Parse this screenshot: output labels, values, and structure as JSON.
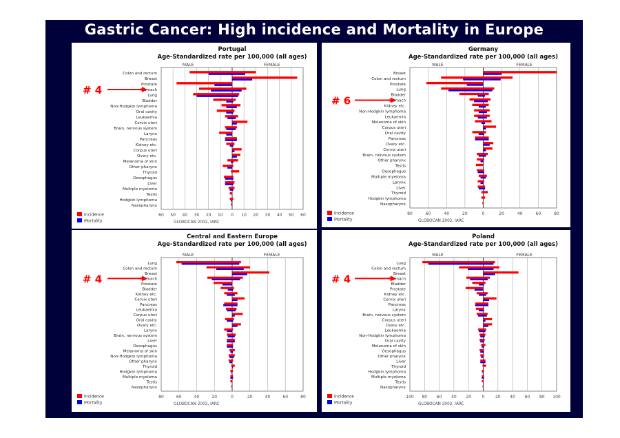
{
  "slide": {
    "title": "Gastric Cancer: High incidence and Mortality in Europe"
  },
  "common": {
    "male_label": "MALE",
    "female_label": "FEMALE",
    "legend": [
      {
        "label": "Incidence",
        "color": "#ff0000"
      },
      {
        "label": "Mortality",
        "color": "#0000ff"
      }
    ],
    "source": "GLOBOCAN 2002, IARC",
    "arrow_color": "#ff0000"
  },
  "chart_data": [
    {
      "type": "bar",
      "title": "Portugal",
      "subtitle": "Age-Standardized rate per 100,000 (all ages)",
      "rank_label": "# 4",
      "highlight": "Stomach",
      "axis_max": 60,
      "ticks": [
        "60",
        "50",
        "40",
        "30",
        "20",
        "10",
        "0",
        "10",
        "20",
        "30",
        "40",
        "50",
        "60"
      ],
      "categories": [
        "Colon and rectum",
        "Breast",
        "Prostate",
        "Stomach",
        "Lung",
        "Bladder",
        "Non-Hodgkin lymphoma",
        "Oral cavity",
        "Leukaemia",
        "Cervix uteri",
        "Brain, nervous system",
        "Larynx",
        "Pancreas",
        "Kidney etc.",
        "Corpus uteri",
        "Ovary etc.",
        "Melanoma of skin",
        "Other pharynx",
        "Thyroid",
        "Oesophagus",
        "Liver",
        "Multiple myeloma",
        "Testis",
        "Hodgkin lymphoma",
        "Nasopharynx"
      ],
      "series": [
        {
          "name": "Male incidence",
          "values": [
            36,
            0,
            47,
            28,
            33,
            16,
            9,
            13,
            6,
            0,
            6,
            11,
            6,
            5,
            0,
            0,
            4,
            8,
            1,
            7,
            6,
            3,
            2,
            2,
            1
          ]
        },
        {
          "name": "Male mortality",
          "values": [
            20,
            0,
            15,
            18,
            30,
            5,
            5,
            5,
            4,
            0,
            5,
            5,
            6,
            2,
            0,
            0,
            1,
            4,
            0,
            6,
            6,
            2,
            0,
            1,
            0
          ]
        },
        {
          "name": "Female incidence",
          "values": [
            20,
            55,
            0,
            12,
            6,
            3,
            7,
            2,
            5,
            13,
            4,
            0,
            4,
            2,
            8,
            7,
            5,
            1,
            6,
            1,
            2,
            2,
            0,
            1,
            0
          ]
        },
        {
          "name": "Female mortality",
          "values": [
            11,
            17,
            0,
            8,
            5,
            1,
            4,
            1,
            3,
            4,
            3,
            0,
            4,
            1,
            2,
            4,
            1,
            0,
            0,
            1,
            1,
            1,
            0,
            0,
            0
          ]
        }
      ]
    },
    {
      "type": "bar",
      "title": "Germany",
      "subtitle": "Age-Standardized rate per 100,000 (all ages)",
      "rank_label": "# 6",
      "highlight": "Stomach",
      "axis_max": 80,
      "ticks": [
        "80",
        "60",
        "40",
        "20",
        "0",
        "20",
        "40",
        "60",
        "80"
      ],
      "categories": [
        "Breast",
        "Colon and rectum",
        "Prostate",
        "Lung",
        "Bladder",
        "Stomach",
        "Kidney etc.",
        "Non-Hodgkin lymphoma",
        "Leukaemia",
        "Melanoma of skin",
        "Corpus uteri",
        "Oral cavity",
        "Pancreas",
        "Ovary etc.",
        "Cervix uteri",
        "Brain, nervous system",
        "Other pharynx",
        "Testis",
        "Oesophagus",
        "Multiple myeloma",
        "Larynx",
        "Liver",
        "Thyroid",
        "Hodgkin lymphoma",
        "Nasopharynx"
      ],
      "series": [
        {
          "name": "Male incidence",
          "values": [
            0,
            46,
            62,
            46,
            26,
            15,
            12,
            10,
            10,
            9,
            0,
            12,
            9,
            0,
            0,
            7,
            7,
            8,
            7,
            5,
            6,
            6,
            2,
            2,
            1
          ]
        },
        {
          "name": "Male mortality",
          "values": [
            0,
            22,
            18,
            38,
            6,
            10,
            5,
            5,
            6,
            2,
            0,
            5,
            9,
            0,
            0,
            5,
            3,
            0,
            6,
            3,
            3,
            5,
            0,
            0,
            0
          ]
        },
        {
          "name": "Female incidence",
          "values": [
            80,
            32,
            0,
            12,
            6,
            8,
            6,
            7,
            7,
            9,
            14,
            3,
            6,
            11,
            10,
            5,
            1,
            0,
            1,
            4,
            1,
            2,
            5,
            2,
            0
          ]
        },
        {
          "name": "Female mortality",
          "values": [
            20,
            19,
            0,
            10,
            2,
            5,
            3,
            4,
            4,
            2,
            3,
            1,
            6,
            7,
            3,
            3,
            0,
            0,
            1,
            3,
            0,
            2,
            0,
            0,
            0
          ]
        }
      ]
    },
    {
      "type": "bar",
      "title": "Central and Eastern Europe",
      "subtitle": "Age-Standardized rate per 100,000 (all ages)",
      "rank_label": "# 4",
      "highlight": "Stomach",
      "axis_max": 80,
      "ticks": [
        "80",
        "60",
        "40",
        "20",
        "0",
        "20",
        "40",
        "60",
        "80"
      ],
      "categories": [
        "Lung",
        "Colon and rectum",
        "Breast",
        "Stomach",
        "Prostate",
        "Bladder",
        "Kidney etc.",
        "Cervix uteri",
        "Pancreas",
        "Leukaemia",
        "Corpus uteri",
        "Oral cavity",
        "Ovary etc.",
        "Larynx",
        "Brain, nervous system",
        "Liver",
        "Oesophagus",
        "Melanoma of skin",
        "Non-Hodgkin lymphoma",
        "Other pharynx",
        "Thyroid",
        "Hodgkin lymphoma",
        "Multiple myeloma",
        "Testis",
        "Nasopharynx"
      ],
      "series": [
        {
          "name": "Male incidence",
          "values": [
            63,
            29,
            0,
            28,
            21,
            13,
            9,
            0,
            9,
            7,
            0,
            8,
            0,
            9,
            6,
            6,
            6,
            3,
            4,
            4,
            1,
            2,
            2,
            2,
            1
          ]
        },
        {
          "name": "Male mortality",
          "values": [
            57,
            18,
            0,
            23,
            11,
            5,
            6,
            0,
            10,
            6,
            0,
            6,
            0,
            6,
            5,
            6,
            6,
            2,
            3,
            3,
            0,
            1,
            2,
            0,
            0
          ]
        },
        {
          "name": "Female incidence",
          "values": [
            10,
            20,
            42,
            12,
            0,
            2,
            6,
            14,
            6,
            5,
            12,
            2,
            10,
            1,
            4,
            3,
            1,
            3,
            3,
            1,
            3,
            1,
            1,
            0,
            0
          ]
        },
        {
          "name": "Female mortality",
          "values": [
            8,
            13,
            17,
            9,
            0,
            1,
            3,
            6,
            6,
            4,
            3,
            1,
            6,
            0,
            3,
            3,
            1,
            1,
            2,
            0,
            1,
            0,
            1,
            0,
            0
          ]
        }
      ]
    },
    {
      "type": "bar",
      "title": "Poland",
      "subtitle": "Age-Standardized rate per 100,000 (all ages)",
      "rank_label": "# 4",
      "highlight": "Stomach",
      "axis_max": 100,
      "ticks": [
        "100",
        "80",
        "60",
        "40",
        "20",
        "0",
        "20",
        "40",
        "60",
        "80",
        "100"
      ],
      "categories": [
        "Lung",
        "Colon and rectum",
        "Breast",
        "Stomach",
        "Bladder",
        "Prostate",
        "Kidney etc.",
        "Cervix uteri",
        "Pancreas",
        "Larynx",
        "Brain, nervous system",
        "Corpus uteri",
        "Ovary etc.",
        "Leukaemia",
        "Non-Hodgkin lymphoma",
        "Oral cavity",
        "Melanoma of skin",
        "Oesophagus",
        "Other pharynx",
        "Liver",
        "Thyroid",
        "Hodgkin lymphoma",
        "Multiple myeloma",
        "Testis",
        "Nasopharynx"
      ],
      "series": [
        {
          "name": "Male incidence",
          "values": [
            83,
            33,
            0,
            23,
            15,
            24,
            9,
            0,
            11,
            10,
            9,
            0,
            0,
            7,
            5,
            5,
            3,
            5,
            4,
            4,
            1,
            2,
            2,
            2,
            1
          ]
        },
        {
          "name": "Male mortality",
          "values": [
            75,
            21,
            0,
            18,
            6,
            12,
            6,
            0,
            11,
            6,
            7,
            0,
            0,
            6,
            4,
            4,
            2,
            4,
            3,
            4,
            0,
            1,
            2,
            0,
            0
          ]
        },
        {
          "name": "Female incidence",
          "values": [
            16,
            22,
            48,
            9,
            3,
            0,
            6,
            18,
            7,
            1,
            6,
            12,
            12,
            4,
            3,
            2,
            3,
            1,
            1,
            3,
            4,
            1,
            1,
            0,
            0
          ]
        },
        {
          "name": "Female mortality",
          "values": [
            14,
            14,
            16,
            6,
            1,
            0,
            4,
            8,
            7,
            1,
            5,
            3,
            7,
            3,
            2,
            1,
            1,
            1,
            0,
            3,
            0,
            0,
            1,
            0,
            0
          ]
        }
      ]
    }
  ]
}
